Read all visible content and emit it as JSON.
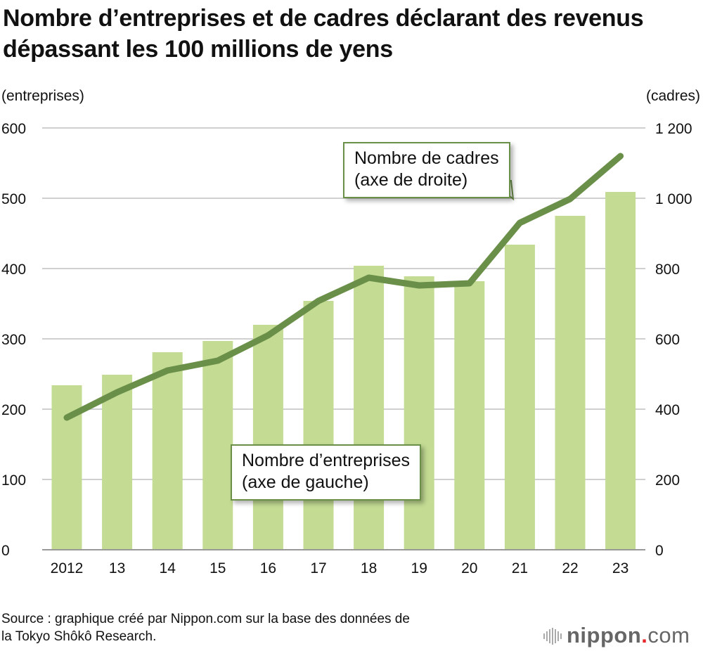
{
  "chart_data": {
    "type": "bar+line",
    "title": "Nombre d’entreprises et de cadres déclarant des revenus dépassant les 100 millions de yens",
    "categories": [
      "2012",
      "13",
      "14",
      "15",
      "16",
      "17",
      "18",
      "19",
      "20",
      "21",
      "22",
      "23"
    ],
    "left_axis": {
      "label": "(entreprises)",
      "ylim": [
        0,
        600
      ],
      "ticks": [
        "0",
        "100",
        "200",
        "300",
        "400",
        "500",
        "600"
      ]
    },
    "right_axis": {
      "label": "(cadres)",
      "ylim": [
        0,
        1200
      ],
      "ticks": [
        "0",
        "200",
        "400",
        "600",
        "800",
        "1 000",
        "1 200"
      ]
    },
    "grid": true,
    "series": [
      {
        "name": "Nombre d’entreprises",
        "axis_note": "(axe de gauche)",
        "type": "bar",
        "axis": "left",
        "color": "#c3db93",
        "values": [
          234,
          249,
          281,
          297,
          320,
          354,
          404,
          389,
          382,
          434,
          475,
          509
        ]
      },
      {
        "name": "Nombre de cadres",
        "axis_note": "(axe de droite)",
        "type": "line",
        "axis": "right",
        "color": "#6a8f48",
        "values": [
          376,
          448,
          510,
          538,
          610,
          708,
          774,
          752,
          758,
          930,
          998,
          1120
        ]
      }
    ]
  },
  "source": [
    "Source : graphique créé par Nippon.com sur la base des données de",
    "la Tokyo Shôkô Research."
  ],
  "logo": {
    "name": "nippon",
    "dot": ".",
    "suffix": "com"
  }
}
